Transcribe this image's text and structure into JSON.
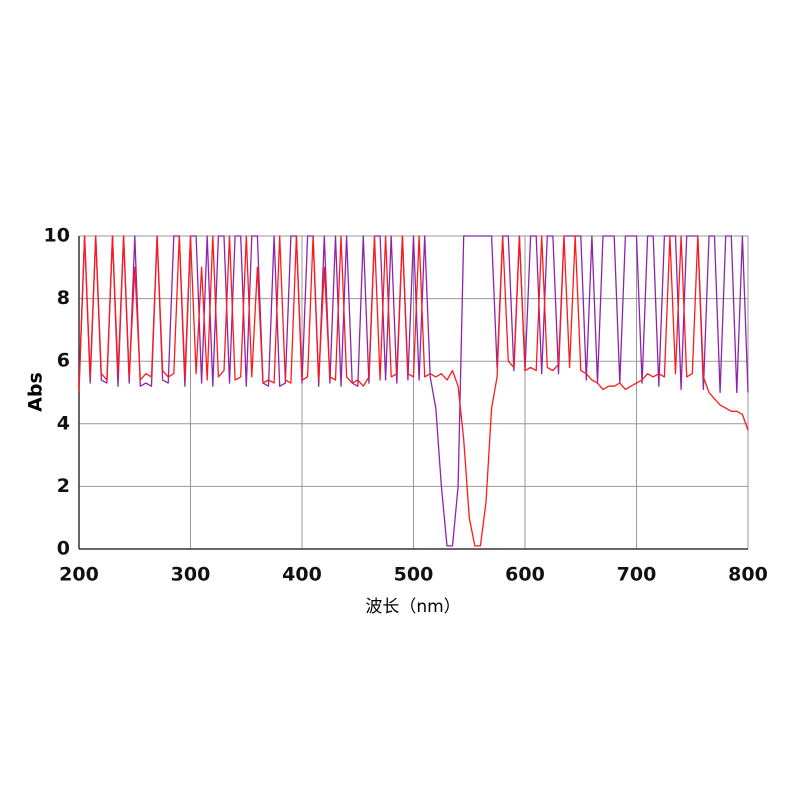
{
  "chart_data": {
    "type": "line",
    "xlabel": "波长（nm）",
    "ylabel": "Abs",
    "x": [
      200,
      205,
      210,
      215,
      220,
      225,
      230,
      235,
      240,
      245,
      250,
      255,
      260,
      265,
      270,
      275,
      280,
      285,
      290,
      295,
      300,
      305,
      310,
      315,
      320,
      325,
      330,
      335,
      340,
      345,
      350,
      355,
      360,
      365,
      370,
      375,
      380,
      385,
      390,
      395,
      400,
      405,
      410,
      415,
      420,
      425,
      430,
      435,
      440,
      445,
      450,
      455,
      460,
      465,
      470,
      475,
      480,
      485,
      490,
      495,
      500,
      505,
      510,
      515,
      520,
      525,
      530,
      535,
      540,
      545,
      550,
      555,
      560,
      565,
      570,
      575,
      580,
      585,
      590,
      595,
      600,
      605,
      610,
      615,
      620,
      625,
      630,
      635,
      640,
      645,
      650,
      655,
      660,
      665,
      670,
      675,
      680,
      685,
      690,
      695,
      700,
      705,
      710,
      715,
      720,
      725,
      730,
      735,
      740,
      745,
      750,
      755,
      760,
      765,
      770,
      775,
      780,
      785,
      790,
      795,
      800
    ],
    "series": [
      {
        "color": "#8e24aa",
        "values": [
          5.2,
          10,
          5.3,
          10,
          5.4,
          5.3,
          10,
          5.2,
          10,
          5.3,
          10,
          5.2,
          5.3,
          5.2,
          10,
          5.4,
          5.3,
          10,
          10,
          5.2,
          10,
          10,
          5.3,
          10,
          5.2,
          10,
          10,
          5.3,
          10,
          10,
          5.2,
          10,
          10,
          5.3,
          5.2,
          10,
          5.2,
          5.3,
          10,
          10,
          5.3,
          10,
          10,
          5.2,
          10,
          5.3,
          10,
          5.2,
          10,
          5.3,
          5.2,
          10,
          5.3,
          10,
          10,
          5.4,
          10,
          5.3,
          10,
          5.4,
          10,
          5.4,
          10,
          5.5,
          4.5,
          2.0,
          0.1,
          0.1,
          2.0,
          10,
          10,
          10,
          10,
          10,
          10,
          5.8,
          10,
          10,
          5.7,
          10,
          5.7,
          10,
          10,
          5.6,
          10,
          10,
          5.6,
          10,
          10,
          10,
          10,
          5.4,
          10,
          5.3,
          10,
          10,
          10,
          5.3,
          10,
          10,
          10,
          5.3,
          10,
          10,
          5.2,
          10,
          10,
          10,
          5.1,
          10,
          10,
          10,
          5.1,
          10,
          10,
          5.0,
          10,
          10,
          5.0,
          10,
          5.0
        ]
      },
      {
        "color": "#ff1a1a",
        "values": [
          5.0,
          10,
          5.5,
          10,
          5.6,
          5.4,
          10,
          5.6,
          10,
          5.5,
          9,
          5.4,
          5.6,
          5.5,
          10,
          5.7,
          5.5,
          5.6,
          10,
          5.5,
          10,
          5.6,
          9,
          5.4,
          10,
          5.5,
          5.7,
          10,
          5.4,
          5.5,
          10,
          5.5,
          9,
          5.3,
          5.4,
          5.3,
          10,
          5.4,
          5.3,
          10,
          5.4,
          5.5,
          10,
          5.4,
          9,
          5.5,
          5.4,
          10,
          5.5,
          5.3,
          5.4,
          5.2,
          5.5,
          10,
          5.4,
          10,
          5.5,
          5.6,
          10,
          5.6,
          5.5,
          10,
          5.5,
          5.6,
          5.5,
          5.6,
          5.4,
          5.7,
          5.2,
          3.5,
          1.0,
          0.1,
          0.1,
          1.5,
          4.5,
          5.5,
          10,
          6.0,
          5.8,
          10,
          5.7,
          5.8,
          5.7,
          10,
          5.8,
          5.7,
          5.9,
          10,
          5.8,
          10,
          5.7,
          5.6,
          5.4,
          5.3,
          5.1,
          5.2,
          5.2,
          5.3,
          5.1,
          5.2,
          5.3,
          5.4,
          5.6,
          5.5,
          5.6,
          5.5,
          10,
          5.6,
          10,
          5.5,
          5.6,
          10,
          5.5,
          5.0,
          4.8,
          4.6,
          4.5,
          4.4,
          4.4,
          4.3,
          3.8
        ]
      }
    ],
    "xlim": [
      200,
      800
    ],
    "xticks": [
      200,
      300,
      400,
      500,
      600,
      700,
      800
    ],
    "ylim": [
      0,
      10
    ],
    "yticks": [
      0,
      2,
      4,
      6,
      8,
      10
    ],
    "grid": true
  }
}
